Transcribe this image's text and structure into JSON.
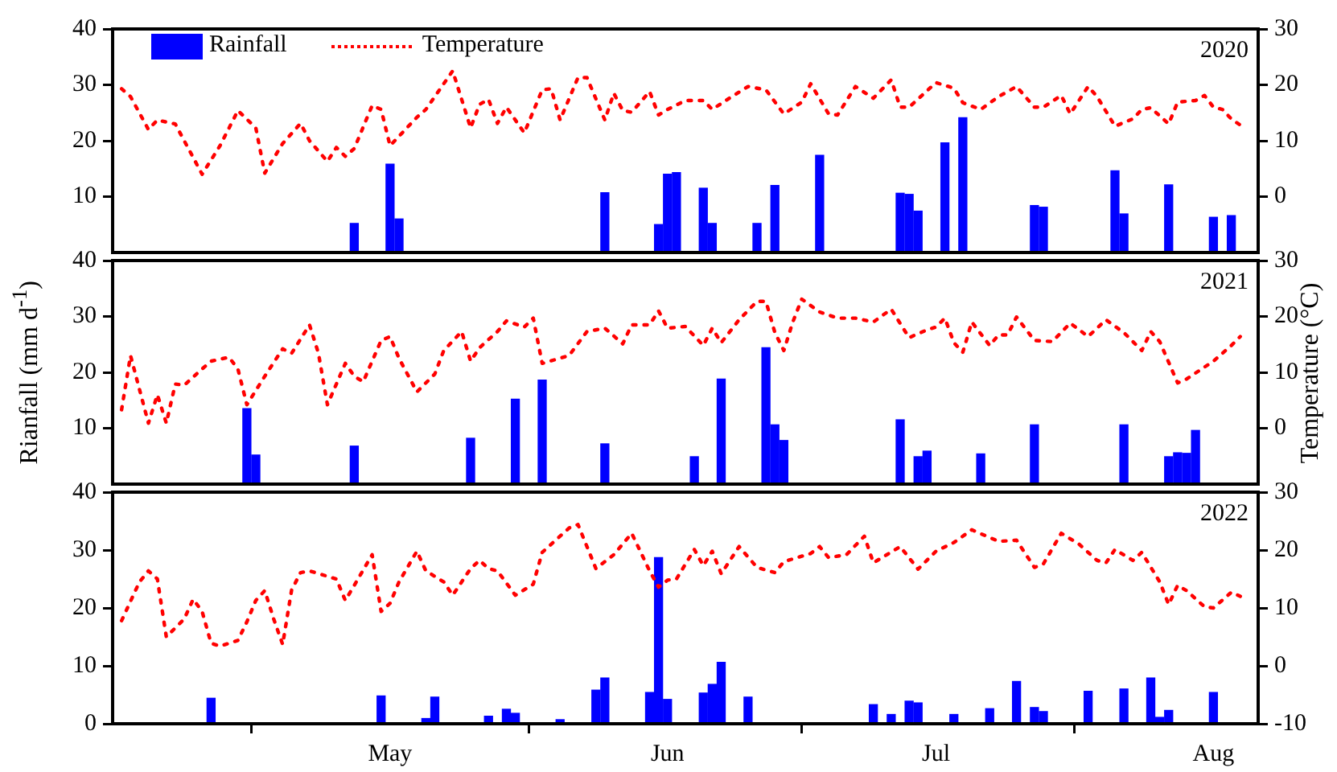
{
  "chart_data": [
    {
      "type": "bar",
      "annotations": [
        "2020"
      ],
      "legend": "top left",
      "tick_labels": "y",
      "xlim": [
        "--03-31",
        "--08-06"
      ],
      "ylim": [
        0,
        40
      ],
      "yticks": [
        10,
        20,
        30,
        40
      ],
      "y2lim": [
        -10,
        30
      ],
      "y2ticks": [
        0,
        10,
        20,
        30
      ],
      "series": [
        {
          "name": "Rainfall",
          "color": "#0000ff",
          "x": [
            "--04-27",
            "--05-01",
            "--05-02",
            "--05-25",
            "--05-31",
            "--06-01",
            "--06-02",
            "--06-05",
            "--06-06",
            "--06-11",
            "--06-13",
            "--06-18",
            "--06-27",
            "--06-28",
            "--06-29",
            "--07-02",
            "--07-04",
            "--07-12",
            "--07-13",
            "--07-21",
            "--07-22",
            "--07-27",
            "--08-01",
            "--08-03"
          ],
          "values": [
            5.2,
            15.8,
            6.0,
            10.7,
            5.0,
            14.0,
            14.3,
            11.5,
            5.2,
            5.2,
            12.0,
            17.4,
            10.6,
            10.4,
            7.4,
            19.6,
            24.1,
            8.4,
            8.1,
            14.6,
            6.9,
            12.1,
            6.3,
            6.6
          ]
        },
        {
          "name": "Temperature",
          "type": "line",
          "axis": "y2",
          "line_style": "dotted",
          "color": "#ff0000",
          "x": [
            "--04-01",
            "--04-02",
            "--04-04",
            "--04-05",
            "--04-07",
            "--04-08",
            "--04-10",
            "--04-12",
            "--04-14",
            "--04-16",
            "--04-17",
            "--04-19",
            "--04-21",
            "--04-22",
            "--04-24",
            "--04-25",
            "--04-26",
            "--04-27",
            "--04-29",
            "--04-30",
            "--05-01",
            "--05-04",
            "--05-05",
            "--05-08",
            "--05-10",
            "--05-11",
            "--05-12",
            "--05-13",
            "--05-14",
            "--05-16",
            "--05-18",
            "--05-19",
            "--05-20",
            "--05-22",
            "--05-23",
            "--05-25",
            "--05-26",
            "--05-27",
            "--05-28",
            "--05-30",
            "--05-31",
            "--06-01",
            "--06-03",
            "--06-05",
            "--06-06",
            "--06-08",
            "--06-10",
            "--06-12",
            "--06-14",
            "--06-16",
            "--06-17",
            "--06-19",
            "--06-20",
            "--06-22",
            "--06-24",
            "--06-26",
            "--06-27",
            "--06-28",
            "--07-01",
            "--07-03",
            "--07-04",
            "--07-06",
            "--07-08",
            "--07-10",
            "--07-12",
            "--07-13",
            "--07-15",
            "--07-16",
            "--07-18",
            "--07-19",
            "--07-21",
            "--07-23",
            "--07-24",
            "--07-25",
            "--07-27",
            "--07-28",
            "--07-30",
            "--07-31",
            "--08-01",
            "--08-02",
            "--08-03",
            "--08-04"
          ],
          "values": [
            19.3,
            17.9,
            12.0,
            13.7,
            13.0,
            10,
            4,
            9.1,
            15.4,
            12.3,
            4.2,
            9.5,
            13.1,
            10,
            6.3,
            8.8,
            7.2,
            8.6,
            16.3,
            15.6,
            9.1,
            14.2,
            15.6,
            22.5,
            12.3,
            16.5,
            17.4,
            13.1,
            16,
            11.4,
            19.1,
            19.3,
            13.7,
            21.3,
            21.3,
            13.7,
            18.5,
            15.4,
            15.1,
            18.8,
            14.6,
            15.6,
            17.2,
            17.2,
            15.6,
            17.7,
            19.7,
            19.1,
            14.8,
            16.9,
            20.2,
            14.8,
            14.6,
            19.7,
            17.6,
            20.9,
            16,
            16,
            20.4,
            19.4,
            16.8,
            15.6,
            17.9,
            19.7,
            16,
            16,
            18.1,
            14.8,
            19.7,
            17.9,
            12.6,
            13.9,
            15.6,
            15.9,
            13,
            16.9,
            17.2,
            18.1,
            16,
            15.6,
            13.9,
            12.8
          ]
        }
      ]
    },
    {
      "type": "bar",
      "annotations": [
        "2021"
      ],
      "tick_labels": "y",
      "ylabel": "Rianfall (mm d$^{-1}$)",
      "y2label": "Temperature (°C)",
      "xlim": [
        "--03-31",
        "--08-06"
      ],
      "ylim": [
        0,
        40
      ],
      "yticks": [
        10,
        20,
        30,
        40
      ],
      "y2lim": [
        -10,
        30
      ],
      "y2ticks": [
        0,
        10,
        20,
        30
      ],
      "series": [
        {
          "color": "#0000ff",
          "x": [
            "--04-15",
            "--04-16",
            "--04-27",
            "--05-10",
            "--05-15",
            "--05-18",
            "--05-25",
            "--06-04",
            "--06-07",
            "--06-12",
            "--06-13",
            "--06-14",
            "--06-27",
            "--06-29",
            "--06-30",
            "--07-06",
            "--07-12",
            "--07-22",
            "--07-27",
            "--07-28",
            "--07-29",
            "--07-30"
          ],
          "values": [
            13.5,
            5.2,
            6.8,
            8.2,
            15.2,
            18.6,
            7.2,
            4.9,
            18.8,
            24.4,
            10.6,
            7.8,
            11.5,
            4.9,
            5.9,
            5.4,
            10.6,
            10.6,
            4.9,
            5.6,
            5.5,
            9.6
          ]
        },
        {
          "type": "line",
          "axis": "y2",
          "line_style": "dotted",
          "color": "#ff0000",
          "x": [
            "--04-01",
            "--04-02",
            "--04-04",
            "--04-05",
            "--04-06",
            "--04-07",
            "--04-08",
            "--04-10",
            "--04-11",
            "--04-13",
            "--04-14",
            "--04-15",
            "--04-17",
            "--04-19",
            "--04-20",
            "--04-22",
            "--04-23",
            "--04-24",
            "--04-26",
            "--04-27",
            "--04-28",
            "--04-30",
            "--05-01",
            "--05-02",
            "--05-04",
            "--05-06",
            "--05-07",
            "--05-09",
            "--05-10",
            "--05-11",
            "--05-13",
            "--05-14",
            "--05-16",
            "--05-17",
            "--05-18",
            "--05-21",
            "--05-23",
            "--05-25",
            "--05-27",
            "--05-28",
            "--05-30",
            "--05-31",
            "--06-01",
            "--06-03",
            "--06-05",
            "--06-06",
            "--06-07",
            "--06-09",
            "--06-11",
            "--06-12",
            "--06-13",
            "--06-14",
            "--06-15",
            "--06-16",
            "--06-18",
            "--06-20",
            "--06-22",
            "--06-24",
            "--06-26",
            "--06-28",
            "--06-30",
            "--07-01",
            "--07-02",
            "--07-03",
            "--07-04",
            "--07-05",
            "--07-07",
            "--07-08",
            "--07-09",
            "--07-10",
            "--07-12",
            "--07-14",
            "--07-16",
            "--07-18",
            "--07-20",
            "--07-22",
            "--07-24",
            "--07-25",
            "--07-26",
            "--07-28",
            "--07-29",
            "--08-01",
            "--08-03",
            "--08-04"
          ],
          "values": [
            3.3,
            13.0,
            0.9,
            6.0,
            0.9,
            7.9,
            7.7,
            10.6,
            12.0,
            12.7,
            10.6,
            4.2,
            9.3,
            14.2,
            13.4,
            18.5,
            13.4,
            4.2,
            11.6,
            9.3,
            8.3,
            15.7,
            16.4,
            12.5,
            6.5,
            9.7,
            13.9,
            17.3,
            12.0,
            14.4,
            17.3,
            19.2,
            18.1,
            19.7,
            11.6,
            13.0,
            17.3,
            17.9,
            15.1,
            18.5,
            18.5,
            21.0,
            17.9,
            18.2,
            14.8,
            17.9,
            15.3,
            19.4,
            22.7,
            22.7,
            17.1,
            13.9,
            19.0,
            23.1,
            20.8,
            19.7,
            19.7,
            19.0,
            21.3,
            16.2,
            17.6,
            18.1,
            19.7,
            15.3,
            13.6,
            19.0,
            14.8,
            16.7,
            16.7,
            19.9,
            15.7,
            15.5,
            18.8,
            16.4,
            19.4,
            17.1,
            13.9,
            17.3,
            15.5,
            8.1,
            8.8,
            12.0,
            14.8,
            16.4
          ]
        }
      ]
    },
    {
      "type": "bar",
      "annotations": [
        "2022"
      ],
      "xlim": [
        "--03-31",
        "--08-06"
      ],
      "xticks": [
        {
          "value": "--05-01",
          "label": "May"
        },
        {
          "value": "--06-01",
          "label": "Jun"
        },
        {
          "value": "--07-01",
          "label": "Jul"
        },
        {
          "value": "--08-01",
          "label": "Aug"
        }
      ],
      "ylim": [
        0,
        40
      ],
      "yticks": [
        0,
        10,
        20,
        30,
        40
      ],
      "y2lim": [
        -10,
        30
      ],
      "y2ticks": [
        -10,
        0,
        10,
        20,
        30
      ],
      "series": [
        {
          "color": "#0000ff",
          "x": [
            "--04-11",
            "--04-30",
            "--05-05",
            "--05-06",
            "--05-12",
            "--05-13",
            "--05-14",
            "--05-15",
            "--05-20",
            "--05-24",
            "--05-25",
            "--05-29",
            "--05-30",
            "--05-31",
            "--06-01",
            "--06-05",
            "--06-06",
            "--06-07",
            "--06-08",
            "--06-10",
            "--06-24",
            "--06-26",
            "--06-28",
            "--06-29",
            "--07-03",
            "--07-07",
            "--07-10",
            "--07-12",
            "--07-13",
            "--07-18",
            "--07-22",
            "--07-25",
            "--07-26",
            "--07-27",
            "--08-01"
          ],
          "values": [
            4.4,
            4.8,
            0.9,
            4.6,
            1.3,
            null,
            2.5,
            1.8,
            0.7,
            5.8,
            7.9,
            null,
            5.4,
            28.7,
            4.2,
            5.3,
            6.8,
            10.6,
            null,
            4.6,
            3.3,
            1.6,
            3.9,
            3.6,
            1.6,
            2.6,
            7.3,
            2.8,
            2.1,
            5.6,
            6.0,
            7.9,
            1.1,
            2.3,
            5.4
          ]
        },
        {
          "type": "line",
          "axis": "y2",
          "line_style": "dotted",
          "color": "#ff0000",
          "x": [
            "--04-01",
            "--04-03",
            "--04-04",
            "--04-05",
            "--04-06",
            "--04-08",
            "--04-09",
            "--04-10",
            "--04-11",
            "--04-12",
            "--04-14",
            "--04-15",
            "--04-16",
            "--04-17",
            "--04-18",
            "--04-19",
            "--04-20",
            "--04-21",
            "--04-22",
            "--04-25",
            "--04-26",
            "--04-27",
            "--04-29",
            "--04-30",
            "--05-01",
            "--05-02",
            "--05-04",
            "--05-05",
            "--05-07",
            "--05-08",
            "--05-10",
            "--05-11",
            "--05-12",
            "--05-13",
            "--05-15",
            "--05-17",
            "--05-18",
            "--05-21",
            "--05-22",
            "--05-24",
            "--05-26",
            "--05-28",
            "--05-30",
            "--05-31",
            "--06-01",
            "--06-02",
            "--06-04",
            "--06-05",
            "--06-06",
            "--06-07",
            "--06-09",
            "--06-11",
            "--06-13",
            "--06-14",
            "--06-17",
            "--06-18",
            "--06-19",
            "--06-21",
            "--06-23",
            "--06-24",
            "--06-27",
            "--06-29",
            "--07-01",
            "--07-03",
            "--07-05",
            "--07-08",
            "--07-10",
            "--07-12",
            "--07-13",
            "--07-15",
            "--07-17",
            "--07-19",
            "--07-20",
            "--07-21",
            "--07-23",
            "--07-24",
            "--07-26",
            "--07-27",
            "--07-28",
            "--07-29",
            "--07-31",
            "--08-01",
            "--08-03",
            "--08-04"
          ],
          "values": [
            7.8,
            14.5,
            16.4,
            15.0,
            5.0,
            8.1,
            11.5,
            9.4,
            3.9,
            3.4,
            4.4,
            7.6,
            11.3,
            13.0,
            8.1,
            3.7,
            13.1,
            16.1,
            16.4,
            15.0,
            11.3,
            13.9,
            19.2,
            9.4,
            10.8,
            14.5,
            19.8,
            16.4,
            14.5,
            12.2,
            16.8,
            18.2,
            16.8,
            16.4,
            12.2,
            14.1,
            19.6,
            23.8,
            24.4,
            16.8,
            19.2,
            22.9,
            16.4,
            13.6,
            14.8,
            15.0,
            20.1,
            17.3,
            19.8,
            15.9,
            20.6,
            17.0,
            16.1,
            18.0,
            19.4,
            20.6,
            18.7,
            19.2,
            22.4,
            17.8,
            20.6,
            16.7,
            19.8,
            21.3,
            23.5,
            21.5,
            21.7,
            17.0,
            17.6,
            22.9,
            21.0,
            18.2,
            17.8,
            20.1,
            18.2,
            19.6,
            14.5,
            10.6,
            13.9,
            13.0,
            10.2,
            10.0,
            12.7,
            12.0
          ]
        }
      ]
    }
  ]
}
